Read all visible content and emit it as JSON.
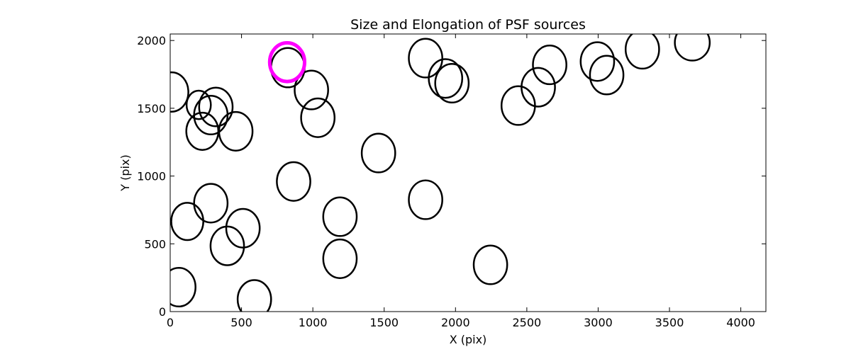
{
  "chart_data": {
    "type": "scatter",
    "marker": "ellipse",
    "title": "Size and Elongation of PSF sources",
    "xlabel": "X (pix)",
    "ylabel": "Y (pix)",
    "xlim": [
      0,
      4176
    ],
    "ylim": [
      0,
      2048
    ],
    "xticks": [
      0,
      500,
      1000,
      1500,
      2000,
      2500,
      3000,
      3500,
      4000
    ],
    "xtick_labels": [
      "0",
      "500",
      "1000",
      "1500",
      "2000",
      "2500",
      "3000",
      "3500",
      "4000"
    ],
    "yticks": [
      0,
      500,
      1000,
      1500,
      2000
    ],
    "ytick_labels": [
      "0",
      "500",
      "1000",
      "1500",
      "2000"
    ],
    "grid": false,
    "sources": [
      {
        "x": 10,
        "y": 1620,
        "w": 235,
        "h": 290,
        "angle": 0,
        "highlight": false
      },
      {
        "x": 225,
        "y": 1330,
        "w": 225,
        "h": 275,
        "angle": 0,
        "highlight": false
      },
      {
        "x": 200,
        "y": 1525,
        "w": 170,
        "h": 210,
        "angle": 0,
        "highlight": false
      },
      {
        "x": 320,
        "y": 1510,
        "w": 235,
        "h": 285,
        "angle": 0,
        "highlight": false
      },
      {
        "x": 285,
        "y": 1450,
        "w": 235,
        "h": 285,
        "angle": 0,
        "highlight": false
      },
      {
        "x": 460,
        "y": 1330,
        "w": 235,
        "h": 285,
        "angle": 0,
        "highlight": false
      },
      {
        "x": 825,
        "y": 1800,
        "w": 235,
        "h": 290,
        "angle": 0,
        "highlight": false
      },
      {
        "x": 820,
        "y": 1840,
        "w": 245,
        "h": 285,
        "angle": 0,
        "highlight": true
      },
      {
        "x": 990,
        "y": 1635,
        "w": 235,
        "h": 285,
        "angle": 0,
        "highlight": false
      },
      {
        "x": 1035,
        "y": 1430,
        "w": 235,
        "h": 285,
        "angle": 0,
        "highlight": false
      },
      {
        "x": 1460,
        "y": 1170,
        "w": 235,
        "h": 285,
        "angle": 0,
        "highlight": false
      },
      {
        "x": 865,
        "y": 960,
        "w": 235,
        "h": 285,
        "angle": 0,
        "highlight": false
      },
      {
        "x": 1190,
        "y": 700,
        "w": 235,
        "h": 285,
        "angle": 0,
        "highlight": false
      },
      {
        "x": 1190,
        "y": 390,
        "w": 235,
        "h": 285,
        "angle": 0,
        "highlight": false
      },
      {
        "x": 1790,
        "y": 825,
        "w": 235,
        "h": 285,
        "angle": 0,
        "highlight": false
      },
      {
        "x": 285,
        "y": 800,
        "w": 235,
        "h": 285,
        "angle": 0,
        "highlight": false
      },
      {
        "x": 510,
        "y": 615,
        "w": 235,
        "h": 285,
        "angle": 0,
        "highlight": false
      },
      {
        "x": 120,
        "y": 665,
        "w": 225,
        "h": 275,
        "angle": 0,
        "highlight": false
      },
      {
        "x": 400,
        "y": 485,
        "w": 235,
        "h": 285,
        "angle": 0,
        "highlight": false
      },
      {
        "x": 60,
        "y": 180,
        "w": 235,
        "h": 285,
        "angle": 0,
        "highlight": false
      },
      {
        "x": 590,
        "y": 90,
        "w": 235,
        "h": 285,
        "angle": 0,
        "highlight": false
      },
      {
        "x": 2245,
        "y": 345,
        "w": 235,
        "h": 285,
        "angle": 0,
        "highlight": false
      },
      {
        "x": 1790,
        "y": 1870,
        "w": 235,
        "h": 285,
        "angle": 0,
        "highlight": false
      },
      {
        "x": 1930,
        "y": 1720,
        "w": 235,
        "h": 285,
        "angle": 0,
        "highlight": false
      },
      {
        "x": 1975,
        "y": 1685,
        "w": 235,
        "h": 285,
        "angle": 0,
        "highlight": false
      },
      {
        "x": 2440,
        "y": 1520,
        "w": 235,
        "h": 285,
        "angle": 0,
        "highlight": false
      },
      {
        "x": 2580,
        "y": 1655,
        "w": 235,
        "h": 285,
        "angle": 0,
        "highlight": false
      },
      {
        "x": 2660,
        "y": 1820,
        "w": 235,
        "h": 285,
        "angle": 0,
        "highlight": false
      },
      {
        "x": 2995,
        "y": 1845,
        "w": 235,
        "h": 285,
        "angle": 0,
        "highlight": false
      },
      {
        "x": 3060,
        "y": 1745,
        "w": 235,
        "h": 285,
        "angle": 0,
        "highlight": false
      },
      {
        "x": 3310,
        "y": 1935,
        "w": 235,
        "h": 285,
        "angle": 0,
        "highlight": false
      },
      {
        "x": 3660,
        "y": 1985,
        "w": 245,
        "h": 265,
        "angle": 0,
        "highlight": false
      }
    ],
    "colors": {
      "outline": "#000000",
      "highlight": "#ff00ff",
      "axis": "#000000",
      "background": "#ffffff"
    }
  }
}
